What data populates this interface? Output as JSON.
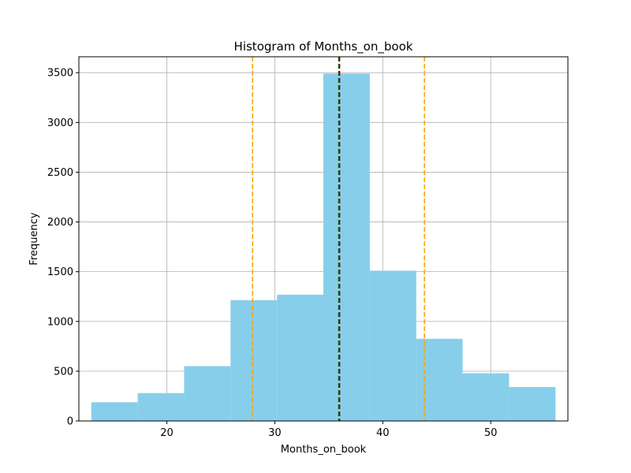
{
  "chart_data": {
    "type": "bar",
    "title": "Histogram of Months_on_book",
    "xlabel": "Months_on_book",
    "ylabel": "Frequency",
    "xlim": [
      11.85,
      57.15
    ],
    "ylim": [
      0,
      3660
    ],
    "bin_edges": [
      13.0,
      17.3,
      21.6,
      25.9,
      30.2,
      34.5,
      38.8,
      43.1,
      47.4,
      51.7,
      56.0
    ],
    "values": [
      188,
      280,
      551,
      1214,
      1269,
      3491,
      1510,
      826,
      479,
      341
    ],
    "x_ticks": [
      20,
      30,
      40,
      50
    ],
    "y_ticks": [
      0,
      500,
      1000,
      1500,
      2000,
      2500,
      3000,
      3500
    ],
    "grid": true,
    "colors": {
      "bars": "#87CEEB",
      "mean_line": "#006400",
      "median_line": "#8B0000",
      "std_lines": "#FFA500",
      "grid": "#b0b0b0"
    },
    "reference_lines": [
      {
        "x": 27.94,
        "color": "#FFA500",
        "style": "dashed"
      },
      {
        "x": 35.93,
        "color": "#006400",
        "style": "dashed"
      },
      {
        "x": 36.0,
        "color": "#8B0000",
        "style": "dashed"
      },
      {
        "x": 43.86,
        "color": "#FFA500",
        "style": "dashed"
      }
    ]
  }
}
